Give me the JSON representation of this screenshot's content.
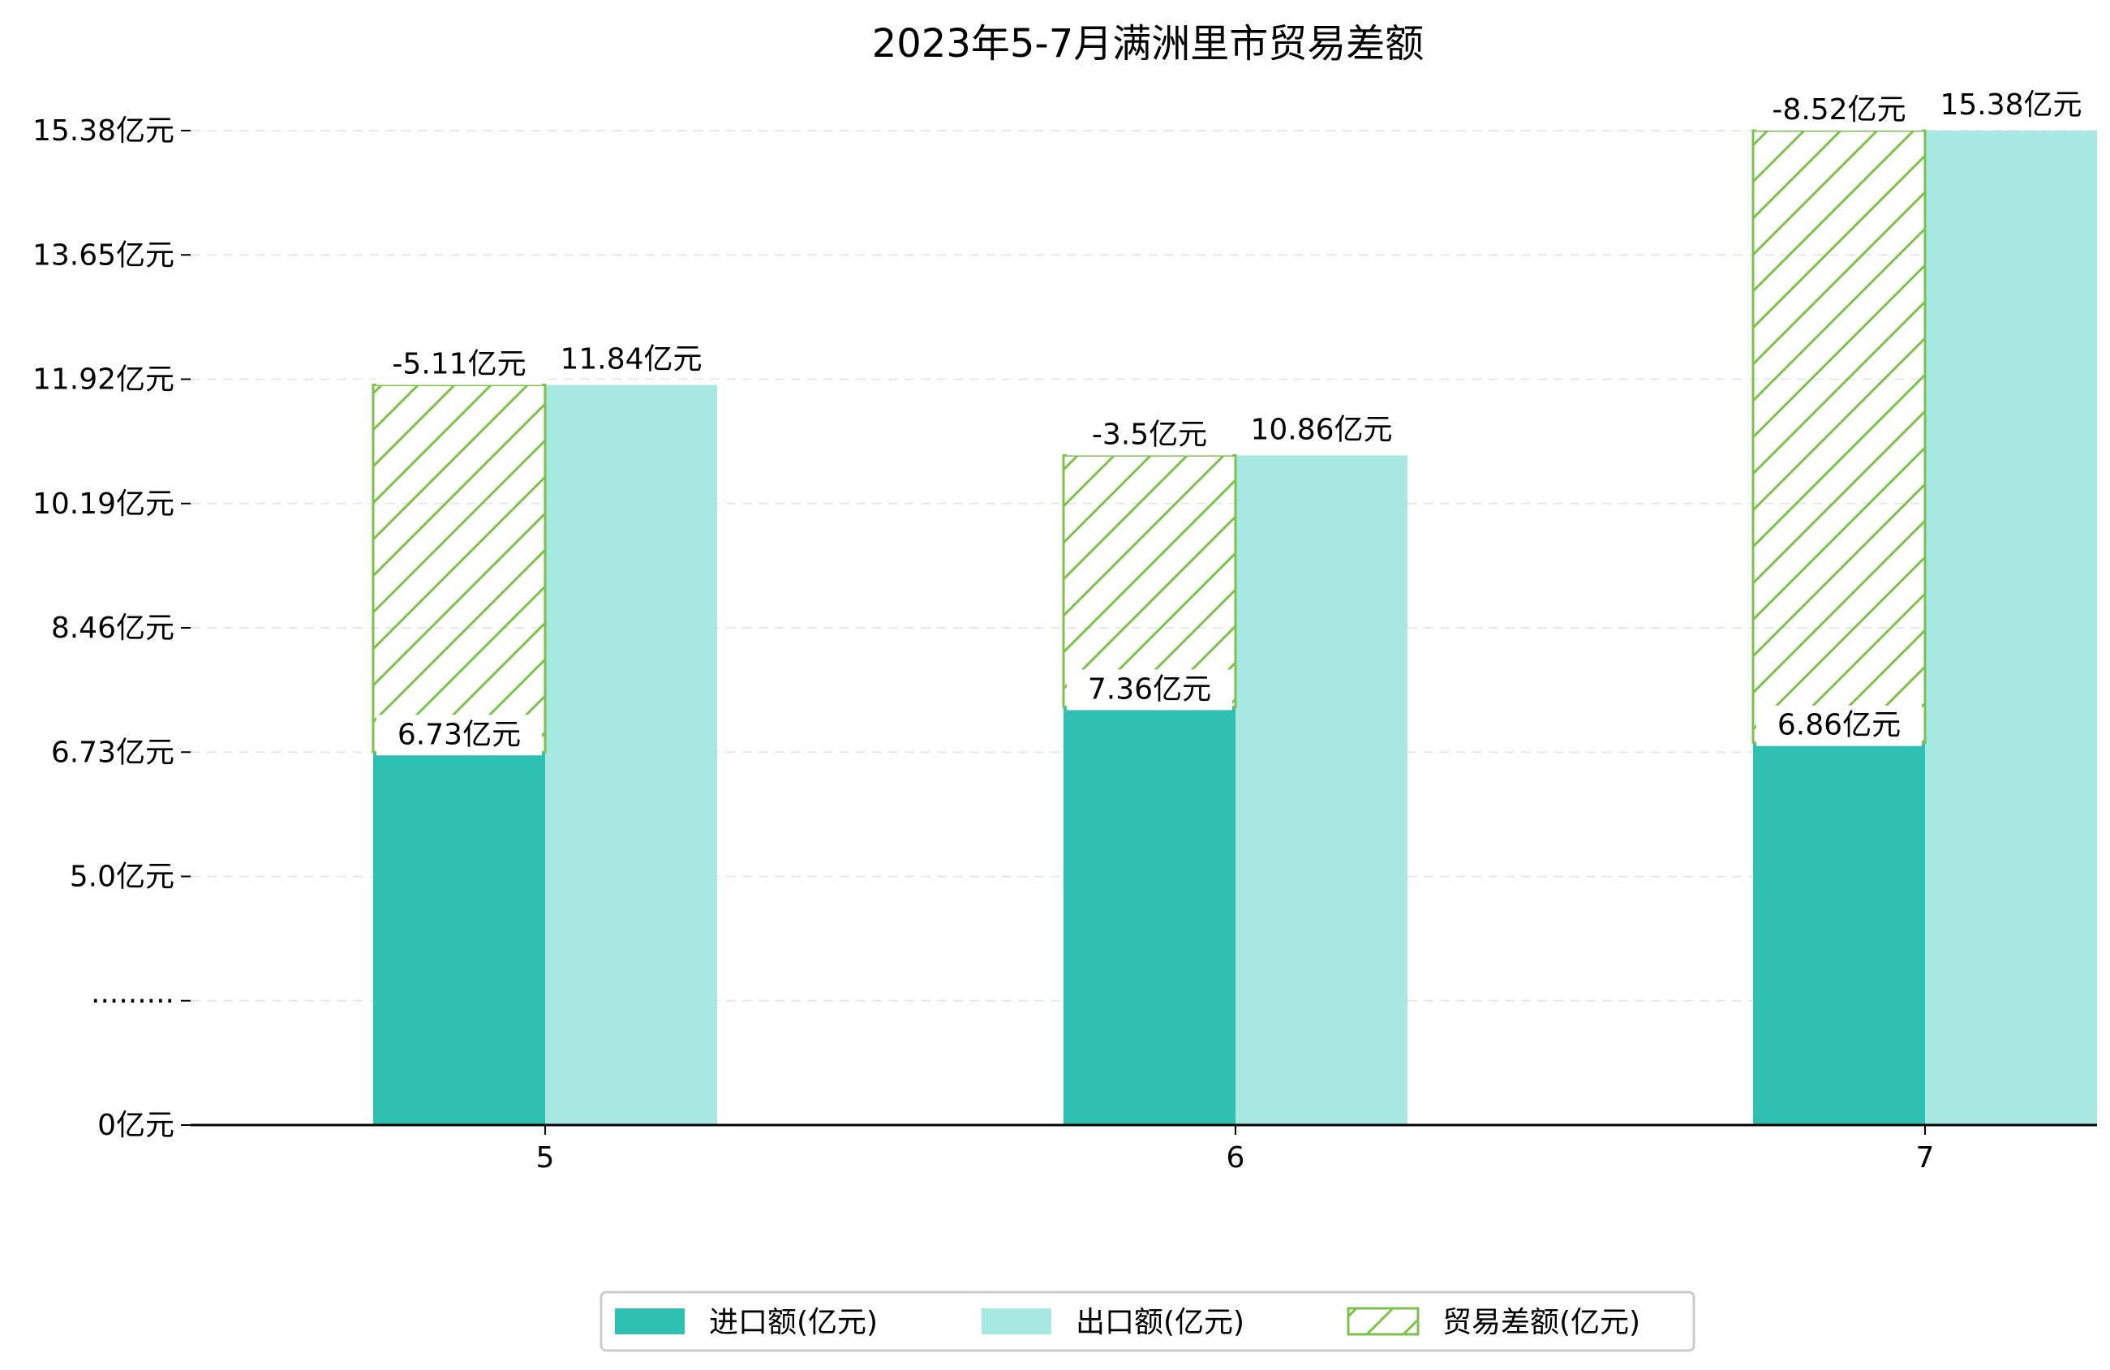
{
  "chart_data": {
    "type": "bar",
    "title": "2023年5-7月满洲里市贸易差额",
    "xlabel": "",
    "ylabel": "",
    "categories": [
      "5",
      "6",
      "7"
    ],
    "series": [
      {
        "name": "进口额(亿元)",
        "values": [
          6.73,
          7.36,
          6.86
        ],
        "labels": [
          "6.73亿元",
          "7.36亿元",
          "6.86亿元"
        ],
        "color": "#2ec0b0"
      },
      {
        "name": "出口额(亿元)",
        "values": [
          11.84,
          10.86,
          15.38
        ],
        "labels": [
          "11.84亿元",
          "10.86亿元",
          "15.38亿元"
        ],
        "color": "#a8e8e2"
      },
      {
        "name": "贸易差额(亿元)",
        "values": [
          -5.11,
          -3.5,
          -8.52
        ],
        "labels": [
          "-5.11亿元",
          "-3.5亿元",
          "-8.52亿元"
        ],
        "color": "#7cc24a"
      }
    ],
    "y_ticks": [
      "0亿元",
      "·········",
      "5.0亿元",
      "6.73亿元",
      "8.46亿元",
      "10.19亿元",
      "11.92亿元",
      "13.65亿元",
      "15.38亿元"
    ],
    "ylim": [
      0,
      15.38
    ],
    "grid": true,
    "legend_position": "bottom-center"
  }
}
